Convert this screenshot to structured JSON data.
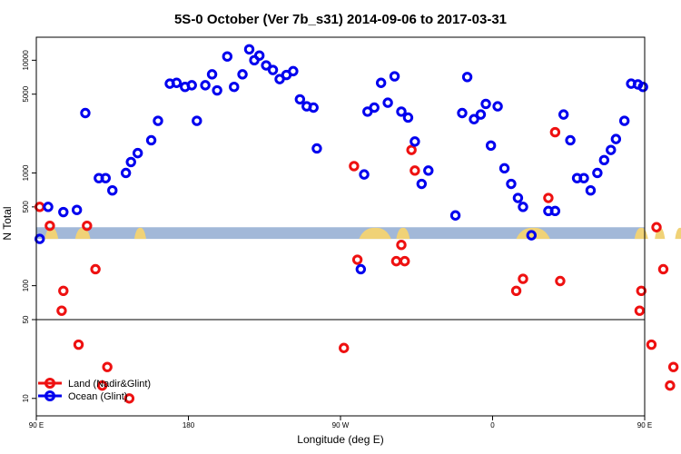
{
  "chart_data": {
    "type": "scatter",
    "title": "5S-0 October (Ver 7b_s31)   2014-09-06 to 2017-03-31",
    "xlabel": "Longitude (deg E)",
    "ylabel": "N Total",
    "x_scale": "unwrapped longitude, starts at 90 E and wraps through 180 to 180 E",
    "xlim": [
      90,
      450
    ],
    "x_ticks": [
      {
        "value": 90,
        "label": "90 E"
      },
      {
        "value": 180,
        "label": "180"
      },
      {
        "value": 270,
        "label": "90 W"
      },
      {
        "value": 360,
        "label": "0"
      },
      {
        "value": 450,
        "label": "90 E"
      },
      {
        "value": 540,
        "label": "180"
      }
    ],
    "y_scale": "log",
    "ylim": [
      7,
      16000
    ],
    "y_ticks": [
      {
        "value": 10,
        "label": "10"
      },
      {
        "value": 50,
        "label": "50"
      },
      {
        "value": 100,
        "label": "100"
      },
      {
        "value": 500,
        "label": "500"
      },
      {
        "value": 1000,
        "label": "1000"
      },
      {
        "value": 5000,
        "label": "5000"
      },
      {
        "value": 10000,
        "label": "10000"
      }
    ],
    "reference_line_y": 50,
    "map_strip": {
      "y_low": 260,
      "y_high": 330,
      "ocean_color": "#a2b8d8",
      "land_color": "#f0d277"
    },
    "legend": {
      "position": "bottom-left"
    },
    "series": [
      {
        "name": "Land (Nadir&Glint)",
        "color": "#ee1111",
        "points": [
          [
            92,
            500
          ],
          [
            98,
            340
          ],
          [
            105,
            60
          ],
          [
            106,
            90
          ],
          [
            115,
            30
          ],
          [
            120,
            340
          ],
          [
            125,
            140
          ],
          [
            129,
            13
          ],
          [
            132,
            19
          ],
          [
            145,
            10
          ],
          [
            272,
            28
          ],
          [
            278,
            1150
          ],
          [
            280,
            170
          ],
          [
            303,
            165
          ],
          [
            306,
            230
          ],
          [
            308,
            165
          ],
          [
            312,
            1600
          ],
          [
            314,
            1050
          ],
          [
            374,
            90
          ],
          [
            378,
            115
          ],
          [
            393,
            600
          ],
          [
            397,
            2300
          ],
          [
            400,
            110
          ],
          [
            447,
            60
          ],
          [
            448,
            90
          ],
          [
            454,
            30
          ],
          [
            457,
            330
          ],
          [
            461,
            140
          ],
          [
            465,
            13
          ],
          [
            467,
            19
          ],
          [
            477,
            10
          ]
        ]
      },
      {
        "name": "Ocean (Glint)",
        "color": "#0000ee",
        "points": [
          [
            92,
            260
          ],
          [
            97,
            500
          ],
          [
            106,
            450
          ],
          [
            114,
            470
          ],
          [
            119,
            3400
          ],
          [
            127,
            900
          ],
          [
            131,
            900
          ],
          [
            135,
            700
          ],
          [
            143,
            1000
          ],
          [
            146,
            1250
          ],
          [
            150,
            1500
          ],
          [
            158,
            1950
          ],
          [
            162,
            2900
          ],
          [
            169,
            6200
          ],
          [
            173,
            6300
          ],
          [
            178,
            5800
          ],
          [
            182,
            6000
          ],
          [
            185,
            2900
          ],
          [
            190,
            6000
          ],
          [
            194,
            7500
          ],
          [
            197,
            5400
          ],
          [
            203,
            10800
          ],
          [
            207,
            5800
          ],
          [
            212,
            7500
          ],
          [
            216,
            12500
          ],
          [
            219,
            10000
          ],
          [
            222,
            11000
          ],
          [
            226,
            9000
          ],
          [
            230,
            8200
          ],
          [
            234,
            6800
          ],
          [
            238,
            7400
          ],
          [
            242,
            8000
          ],
          [
            246,
            4500
          ],
          [
            250,
            3900
          ],
          [
            254,
            3800
          ],
          [
            256,
            1650
          ],
          [
            282,
            140
          ],
          [
            284,
            970
          ],
          [
            286,
            3500
          ],
          [
            290,
            3800
          ],
          [
            294,
            6300
          ],
          [
            298,
            4200
          ],
          [
            302,
            7200
          ],
          [
            306,
            3500
          ],
          [
            310,
            3100
          ],
          [
            314,
            1900
          ],
          [
            318,
            800
          ],
          [
            322,
            1050
          ],
          [
            338,
            420
          ],
          [
            342,
            3400
          ],
          [
            345,
            7100
          ],
          [
            349,
            3000
          ],
          [
            353,
            3300
          ],
          [
            356,
            4100
          ],
          [
            359,
            1750
          ],
          [
            363,
            3900
          ],
          [
            367,
            1100
          ],
          [
            371,
            800
          ],
          [
            375,
            600
          ],
          [
            378,
            500
          ],
          [
            383,
            280
          ],
          [
            393,
            460
          ],
          [
            397,
            460
          ],
          [
            402,
            3300
          ],
          [
            406,
            1950
          ],
          [
            410,
            900
          ],
          [
            414,
            900
          ],
          [
            418,
            700
          ],
          [
            422,
            1000
          ],
          [
            426,
            1300
          ],
          [
            430,
            1600
          ],
          [
            433,
            2000
          ],
          [
            438,
            2900
          ],
          [
            442,
            6200
          ],
          [
            446,
            6100
          ],
          [
            449,
            5800
          ]
        ]
      }
    ]
  }
}
